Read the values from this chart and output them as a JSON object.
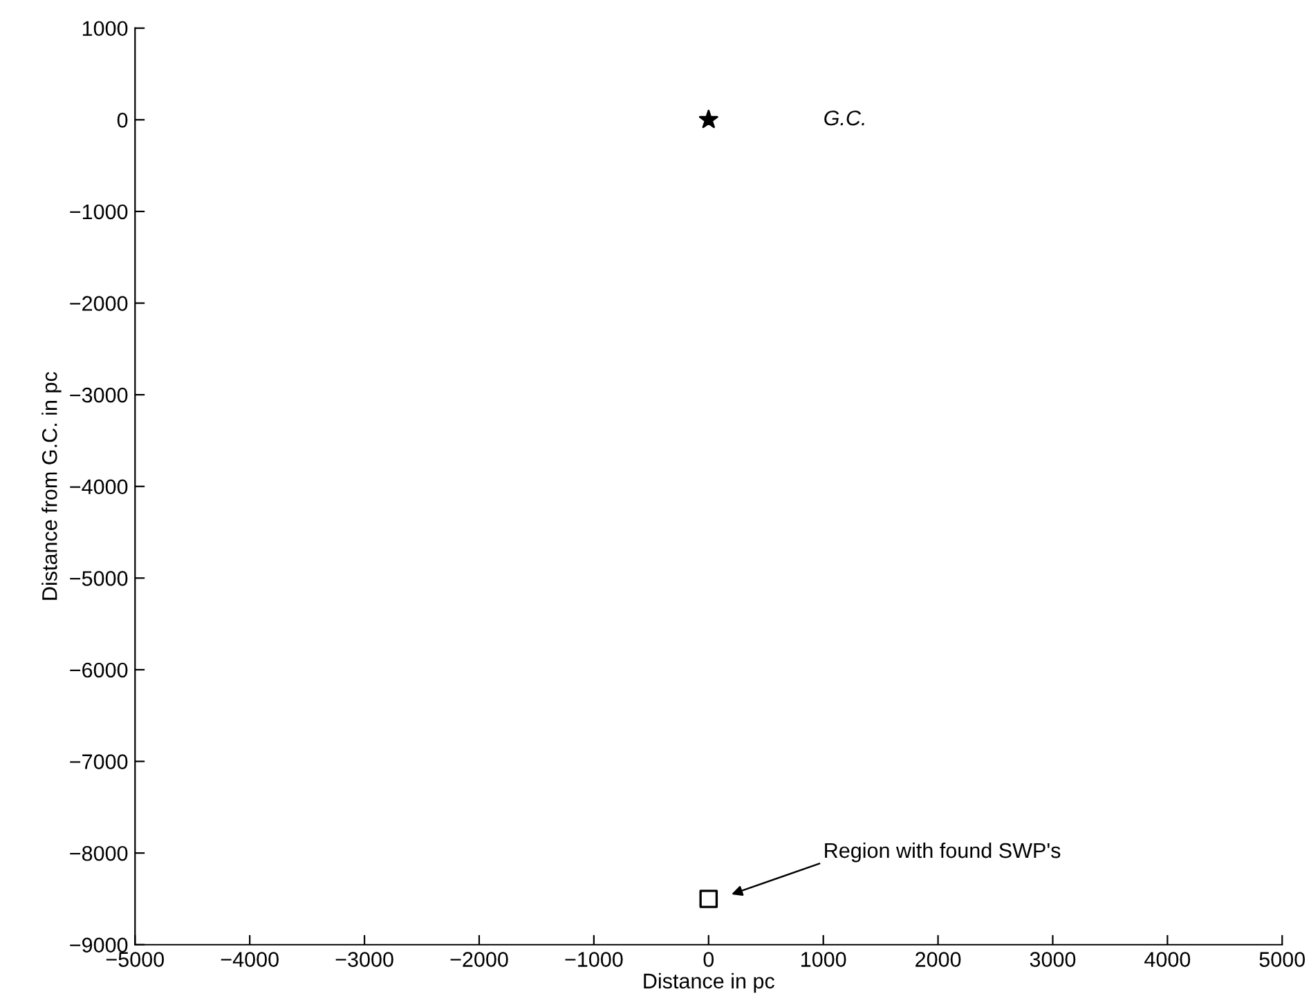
{
  "chart_data": {
    "type": "scatter",
    "xlabel": "Distance in pc",
    "ylabel": "Distance from G.C. in pc",
    "series": [
      {
        "color": "#000000",
        "marker": "star",
        "x": [
          0
        ],
        "values": [
          0
        ]
      },
      {
        "color": "#000000",
        "marker": "square",
        "x": [
          0
        ],
        "values": [
          -8500
        ]
      }
    ],
    "annotations": [
      "G.C.",
      "Region with found SWP's"
    ],
    "xlim": [
      -5000,
      5000
    ],
    "ylim": [
      -9000,
      1000
    ],
    "xticks": [
      {
        "value": -5000,
        "label": "−5000"
      },
      {
        "value": -4000,
        "label": "−4000"
      },
      {
        "value": -3000,
        "label": "−3000"
      },
      {
        "value": -2000,
        "label": "−2000"
      },
      {
        "value": -1000,
        "label": "−1000"
      },
      0,
      1000,
      2000,
      3000,
      4000,
      5000
    ],
    "yticks": [
      {
        "value": -9000,
        "label": "−9000"
      },
      {
        "value": -8000,
        "label": "−8000"
      },
      {
        "value": -7000,
        "label": "−7000"
      },
      {
        "value": -6000,
        "label": "−6000"
      },
      {
        "value": -5000,
        "label": "−5000"
      },
      {
        "value": -4000,
        "label": "−4000"
      },
      {
        "value": -3000,
        "label": "−3000"
      },
      {
        "value": -2000,
        "label": "−2000"
      },
      {
        "value": -1000,
        "label": "−1000"
      },
      0,
      1000
    ],
    "grid": false,
    "legend": false
  }
}
